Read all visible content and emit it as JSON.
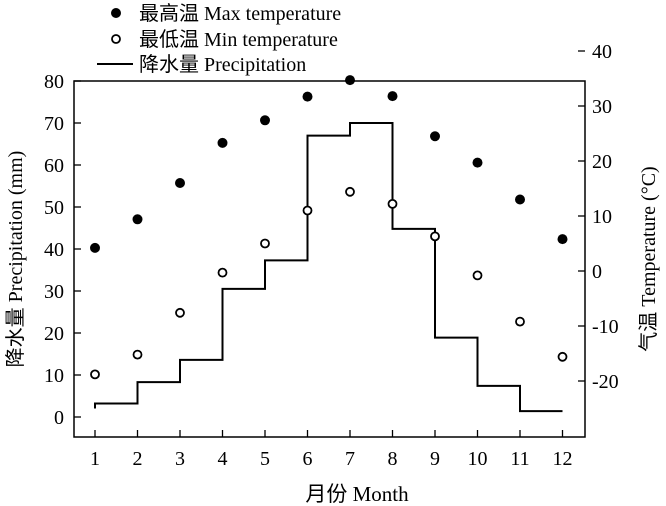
{
  "chart_data": {
    "type": "line",
    "legend": {
      "placement": "top-left",
      "entries": [
        {
          "marker": "filled-circle",
          "label": "最高温 Max temperature"
        },
        {
          "marker": "open-circle",
          "label": "最低温 Min temperature"
        },
        {
          "marker": "line",
          "label": "降水量 Precipitation"
        }
      ]
    },
    "xlabel": "月份 Month",
    "ylabel_left": "降水量 Precipitation (mm)",
    "ylabel_right": "气温 Temperature (°C)",
    "x": [
      1,
      2,
      3,
      4,
      5,
      6,
      7,
      8,
      9,
      10,
      11,
      12
    ],
    "x_ticks": [
      "1",
      "2",
      "3",
      "4",
      "5",
      "6",
      "7",
      "8",
      "9",
      "10",
      "11",
      "12"
    ],
    "xlim": [
      0.5,
      12.5
    ],
    "ylim_left": [
      -5,
      80
    ],
    "yticks_left": [
      0,
      10,
      20,
      30,
      40,
      50,
      60,
      70,
      80
    ],
    "ylim_right": [
      -25,
      40
    ],
    "yticks_right": [
      -20,
      -10,
      0,
      10,
      20,
      30,
      40
    ],
    "series": [
      {
        "name": "最高温 Max temperature",
        "axis": "right",
        "style": "filled-circle",
        "values": [
          4.2,
          9.4,
          16.0,
          23.3,
          27.4,
          31.7,
          34.7,
          31.8,
          24.5,
          19.7,
          13.0,
          5.8
        ]
      },
      {
        "name": "最低温 Min temperature",
        "axis": "right",
        "style": "open-circle",
        "values": [
          -18.8,
          -15.2,
          -7.6,
          -0.3,
          5.0,
          11.0,
          14.4,
          12.2,
          6.3,
          -0.8,
          -9.2,
          -15.6
        ]
      },
      {
        "name": "降水量 Precipitation",
        "axis": "left",
        "style": "step",
        "values": [
          3.2,
          8.3,
          13.6,
          30.5,
          37.3,
          67.0,
          70.0,
          44.8,
          18.9,
          7.4,
          1.4,
          1.4
        ]
      }
    ],
    "grid": false,
    "colors": {
      "line": "#000000",
      "marker": "#000000",
      "background": "#ffffff"
    }
  }
}
